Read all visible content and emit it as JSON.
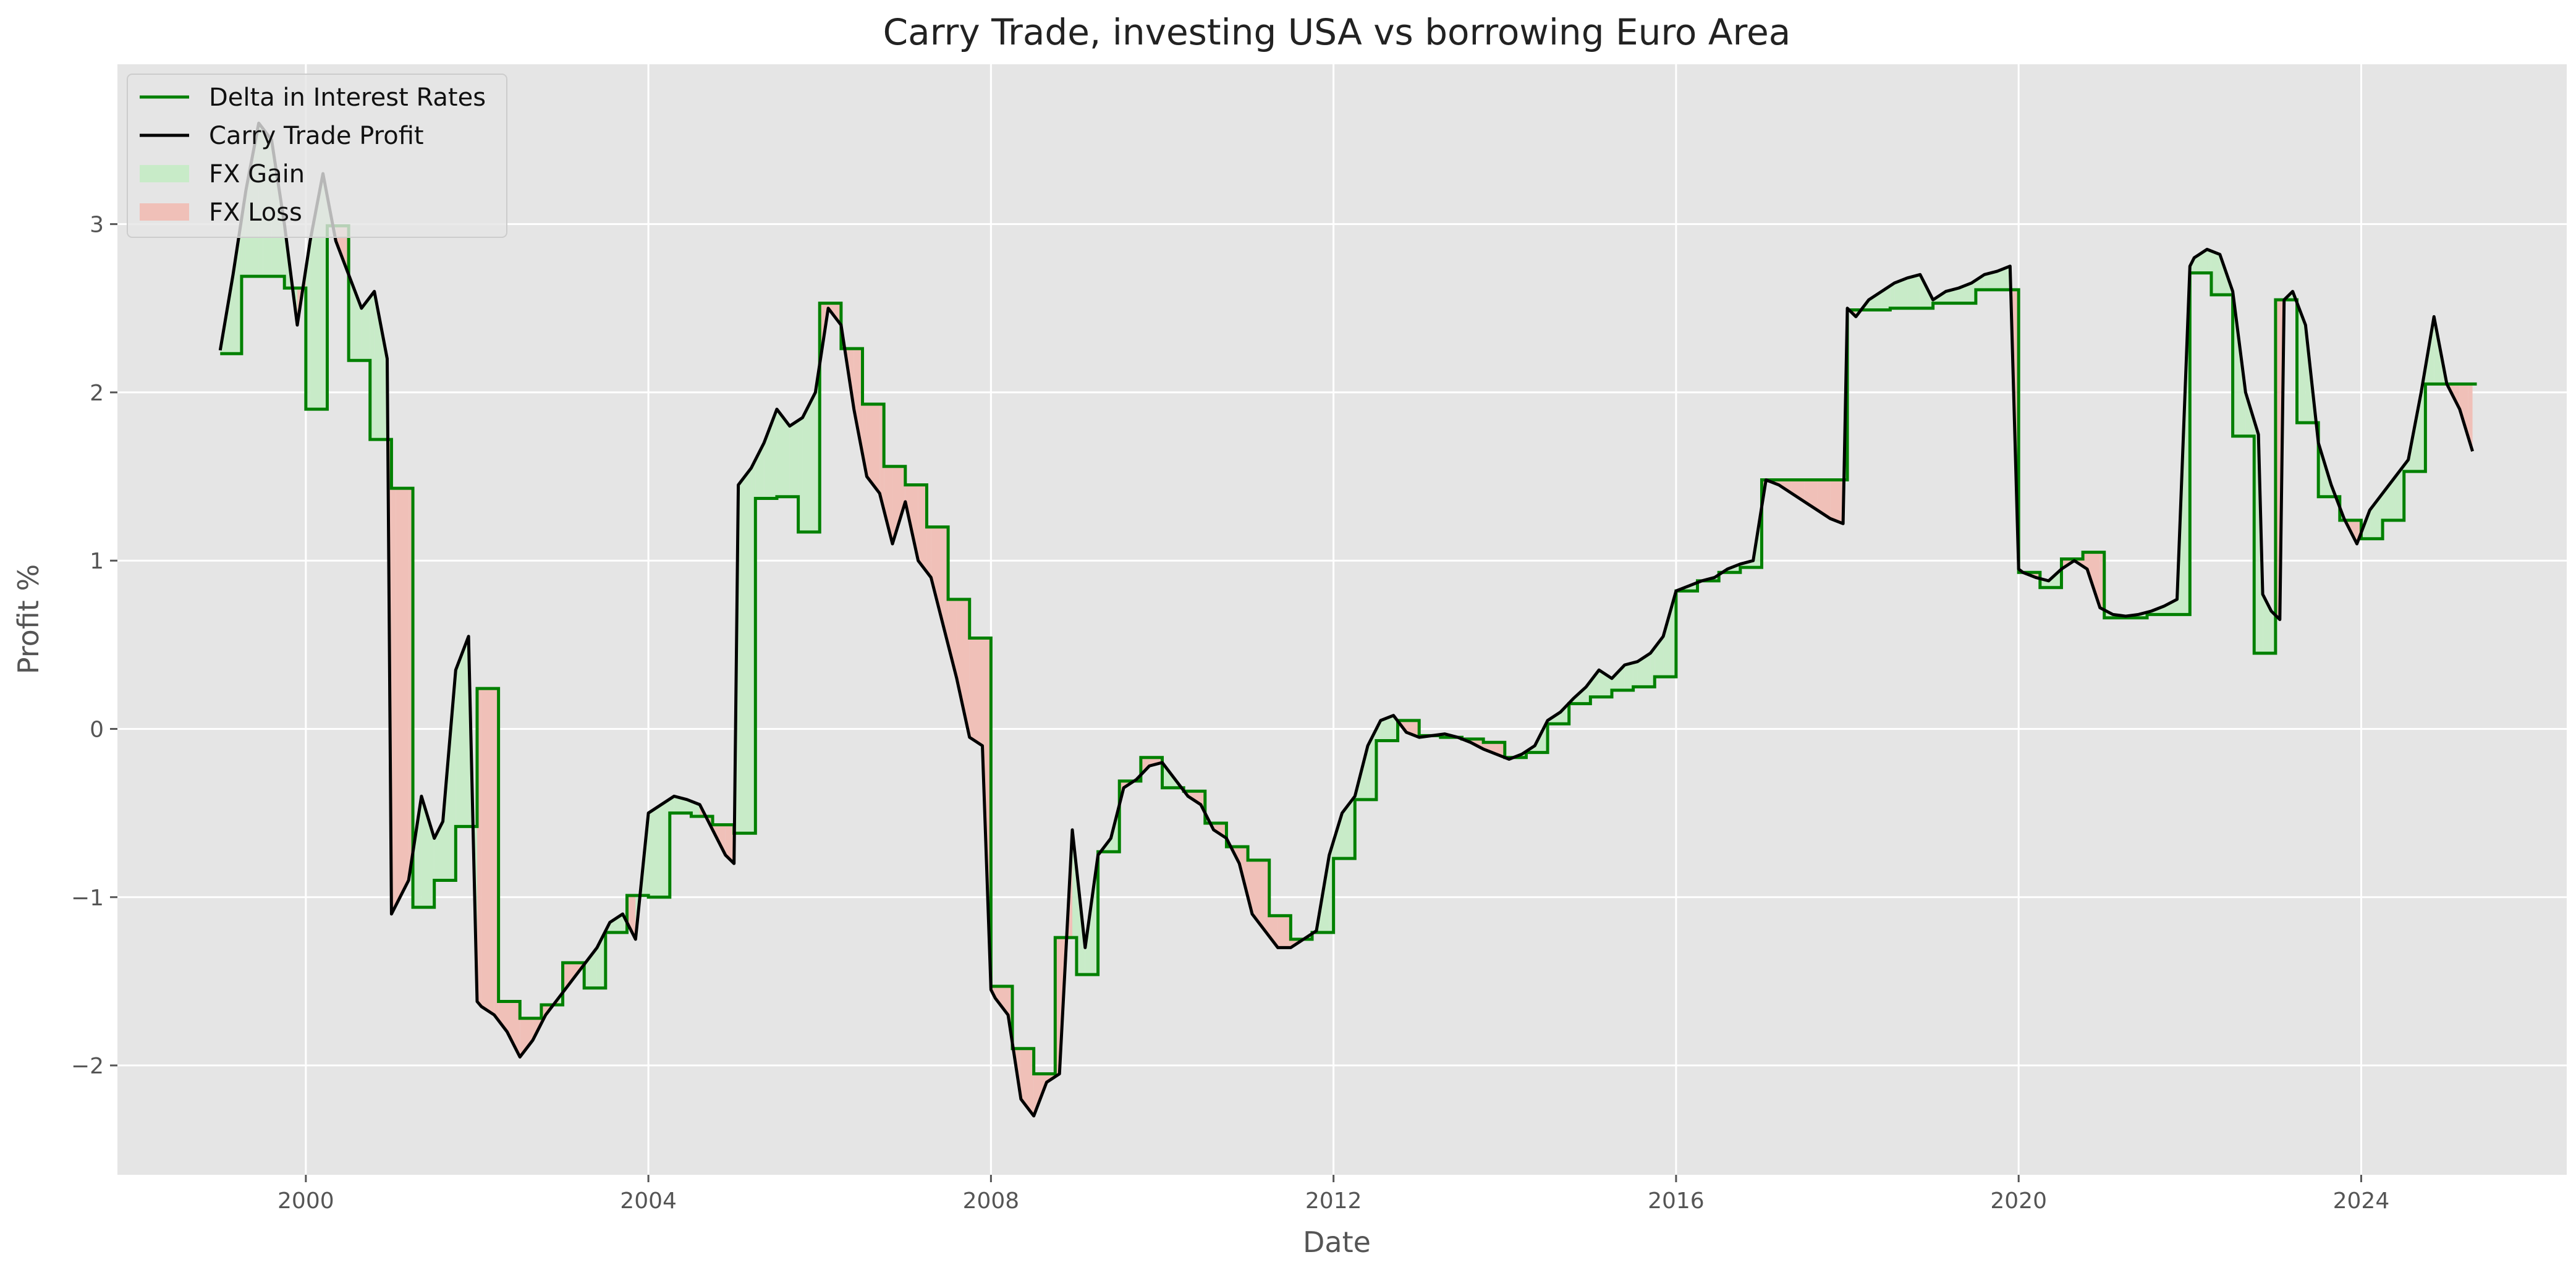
{
  "chart_data": {
    "type": "line",
    "title": "Carry Trade, investing USA vs borrowing Euro Area",
    "xlabel": "Date",
    "ylabel": "Profit %",
    "xlim": [
      1997.8,
      2026.4
    ],
    "ylim": [
      -2.65,
      3.95
    ],
    "x_ticks": [
      {
        "value": 2000,
        "label": "2000"
      },
      {
        "value": 2004,
        "label": "2004"
      },
      {
        "value": 2008,
        "label": "2008"
      },
      {
        "value": 2012,
        "label": "2012"
      },
      {
        "value": 2016,
        "label": "2016"
      },
      {
        "value": 2020,
        "label": "2020"
      },
      {
        "value": 2024,
        "label": "2024"
      }
    ],
    "y_ticks": [
      {
        "value": -2,
        "label": "−2"
      },
      {
        "value": -1,
        "label": "−1"
      },
      {
        "value": 0,
        "label": "0"
      },
      {
        "value": 1,
        "label": "1"
      },
      {
        "value": 2,
        "label": "2"
      },
      {
        "value": 3,
        "label": "3"
      }
    ],
    "grid": true,
    "legend_position": "top-left",
    "legend": [
      {
        "label": "Delta in Interest Rates",
        "kind": "line",
        "color": "#008000"
      },
      {
        "label": "Carry Trade Profit",
        "kind": "line",
        "color": "#000000"
      },
      {
        "label": "FX Gain",
        "kind": "patch",
        "color": "#c8ebc8"
      },
      {
        "label": "FX Loss",
        "kind": "patch",
        "color": "#f0c0b8"
      }
    ],
    "series": [
      {
        "name": "Delta in Interest Rates",
        "color": "#008000",
        "style": "step",
        "x": [
          1999.0,
          1999.25,
          1999.5,
          1999.75,
          2000.0,
          2000.25,
          2000.5,
          2000.75,
          2001.0,
          2001.25,
          2001.5,
          2001.75,
          2002.0,
          2002.25,
          2002.5,
          2002.75,
          2003.0,
          2003.25,
          2003.5,
          2003.75,
          2004.0,
          2004.25,
          2004.5,
          2004.75,
          2005.0,
          2005.25,
          2005.5,
          2005.75,
          2006.0,
          2006.25,
          2006.5,
          2006.75,
          2007.0,
          2007.25,
          2007.5,
          2007.75,
          2008.0,
          2008.25,
          2008.5,
          2008.75,
          2009.0,
          2009.25,
          2009.5,
          2009.75,
          2010.0,
          2010.25,
          2010.5,
          2010.75,
          2011.0,
          2011.25,
          2011.5,
          2011.75,
          2012.0,
          2012.25,
          2012.5,
          2012.75,
          2013.0,
          2013.25,
          2013.5,
          2013.75,
          2014.0,
          2014.25,
          2014.5,
          2014.75,
          2015.0,
          2015.25,
          2015.5,
          2015.75,
          2016.0,
          2016.25,
          2016.5,
          2016.75,
          2017.0,
          2017.5,
          2018.0,
          2018.5,
          2019.0,
          2019.5,
          2020.0,
          2020.25,
          2020.5,
          2020.75,
          2021.0,
          2021.5,
          2022.0,
          2022.25,
          2022.5,
          2022.75,
          2023.0,
          2023.25,
          2023.5,
          2023.75,
          2024.0,
          2024.25,
          2024.5,
          2024.75,
          2025.0,
          2025.25
        ],
        "y": [
          2.23,
          2.69,
          2.69,
          2.62,
          1.9,
          2.99,
          2.19,
          1.72,
          1.43,
          -1.06,
          -0.9,
          -0.58,
          0.24,
          -1.62,
          -1.72,
          -1.64,
          -1.39,
          -1.54,
          -1.21,
          -0.99,
          -1.0,
          -0.5,
          -0.52,
          -0.57,
          -0.62,
          1.37,
          1.38,
          1.17,
          2.53,
          2.26,
          1.93,
          1.56,
          1.45,
          1.2,
          0.77,
          0.54,
          -1.53,
          -1.9,
          -2.05,
          -1.24,
          -1.46,
          -0.73,
          -0.31,
          -0.17,
          -0.35,
          -0.37,
          -0.56,
          -0.7,
          -0.78,
          -1.11,
          -1.25,
          -1.21,
          -0.77,
          -0.42,
          -0.07,
          0.05,
          -0.04,
          -0.05,
          -0.06,
          -0.08,
          -0.17,
          -0.14,
          0.03,
          0.15,
          0.19,
          0.23,
          0.25,
          0.31,
          0.82,
          0.88,
          0.93,
          0.96,
          1.48,
          1.48,
          2.49,
          2.5,
          2.53,
          2.61,
          0.93,
          0.84,
          1.01,
          1.05,
          0.66,
          0.68,
          2.71,
          2.58,
          1.74,
          0.45,
          2.55,
          1.82,
          1.38,
          1.24,
          1.13,
          1.24,
          1.53,
          2.05,
          2.05,
          2.05
        ],
        "x_end": 2025.35
      },
      {
        "name": "Carry Trade Profit",
        "color": "#000000",
        "style": "line",
        "x": [
          1999.0,
          1999.15,
          1999.3,
          1999.45,
          1999.6,
          1999.75,
          1999.9,
          2000.05,
          2000.2,
          2000.35,
          2000.5,
          2000.65,
          2000.8,
          2000.95,
          2001.0,
          2001.05,
          2001.2,
          2001.35,
          2001.5,
          2001.6,
          2001.75,
          2001.9,
          2002.0,
          2002.05,
          2002.2,
          2002.35,
          2002.5,
          2002.65,
          2002.8,
          2002.95,
          2003.1,
          2003.25,
          2003.4,
          2003.55,
          2003.7,
          2003.85,
          2004.0,
          2004.15,
          2004.3,
          2004.45,
          2004.6,
          2004.75,
          2004.9,
          2005.0,
          2005.05,
          2005.2,
          2005.35,
          2005.5,
          2005.65,
          2005.8,
          2005.95,
          2006.1,
          2006.25,
          2006.4,
          2006.55,
          2006.7,
          2006.85,
          2007.0,
          2007.15,
          2007.3,
          2007.45,
          2007.6,
          2007.75,
          2007.9,
          2008.0,
          2008.05,
          2008.2,
          2008.35,
          2008.5,
          2008.65,
          2008.8,
          2008.95,
          2009.1,
          2009.25,
          2009.4,
          2009.55,
          2009.7,
          2009.85,
          2010.0,
          2010.15,
          2010.3,
          2010.45,
          2010.6,
          2010.75,
          2010.9,
          2011.05,
          2011.2,
          2011.35,
          2011.5,
          2011.65,
          2011.8,
          2011.95,
          2012.1,
          2012.25,
          2012.4,
          2012.55,
          2012.7,
          2012.85,
          2013.0,
          2013.15,
          2013.3,
          2013.45,
          2013.6,
          2013.75,
          2013.9,
          2014.05,
          2014.2,
          2014.35,
          2014.5,
          2014.65,
          2014.8,
          2014.95,
          2015.1,
          2015.25,
          2015.4,
          2015.55,
          2015.7,
          2015.85,
          2016.0,
          2016.15,
          2016.3,
          2016.45,
          2016.6,
          2016.75,
          2016.9,
          2017.05,
          2017.2,
          2017.35,
          2017.5,
          2017.65,
          2017.8,
          2017.95,
          2018.0,
          2018.1,
          2018.25,
          2018.4,
          2018.55,
          2018.7,
          2018.85,
          2019.0,
          2019.15,
          2019.3,
          2019.45,
          2019.6,
          2019.75,
          2019.9,
          2020.0,
          2020.05,
          2020.2,
          2020.35,
          2020.5,
          2020.65,
          2020.8,
          2020.95,
          2021.1,
          2021.25,
          2021.4,
          2021.55,
          2021.7,
          2021.85,
          2022.0,
          2022.05,
          2022.2,
          2022.35,
          2022.5,
          2022.65,
          2022.8,
          2022.85,
          2022.95,
          2023.05,
          2023.1,
          2023.2,
          2023.35,
          2023.5,
          2023.65,
          2023.8,
          2023.95,
          2024.1,
          2024.25,
          2024.4,
          2024.55,
          2024.7,
          2024.85,
          2025.0,
          2025.15,
          2025.3
        ],
        "y": [
          2.25,
          2.7,
          3.2,
          3.6,
          3.5,
          3.0,
          2.4,
          2.9,
          3.3,
          2.9,
          2.7,
          2.5,
          2.6,
          2.2,
          -1.1,
          -1.05,
          -0.9,
          -0.4,
          -0.65,
          -0.55,
          0.35,
          0.55,
          -1.62,
          -1.65,
          -1.7,
          -1.8,
          -1.95,
          -1.85,
          -1.7,
          -1.6,
          -1.5,
          -1.4,
          -1.3,
          -1.15,
          -1.1,
          -1.25,
          -0.5,
          -0.45,
          -0.4,
          -0.42,
          -0.45,
          -0.6,
          -0.75,
          -0.8,
          1.45,
          1.55,
          1.7,
          1.9,
          1.8,
          1.85,
          2.0,
          2.5,
          2.4,
          1.9,
          1.5,
          1.4,
          1.1,
          1.35,
          1.0,
          0.9,
          0.6,
          0.3,
          -0.05,
          -0.1,
          -1.55,
          -1.6,
          -1.7,
          -2.2,
          -2.3,
          -2.1,
          -2.05,
          -0.6,
          -1.3,
          -0.75,
          -0.65,
          -0.35,
          -0.3,
          -0.22,
          -0.2,
          -0.3,
          -0.4,
          -0.45,
          -0.6,
          -0.65,
          -0.8,
          -1.1,
          -1.2,
          -1.3,
          -1.3,
          -1.25,
          -1.2,
          -0.75,
          -0.5,
          -0.4,
          -0.1,
          0.05,
          0.08,
          -0.02,
          -0.05,
          -0.04,
          -0.03,
          -0.05,
          -0.08,
          -0.12,
          -0.15,
          -0.18,
          -0.15,
          -0.1,
          0.05,
          0.1,
          0.18,
          0.25,
          0.35,
          0.3,
          0.38,
          0.4,
          0.45,
          0.55,
          0.82,
          0.85,
          0.88,
          0.9,
          0.95,
          0.98,
          1.0,
          1.48,
          1.45,
          1.4,
          1.35,
          1.3,
          1.25,
          1.22,
          2.5,
          2.45,
          2.55,
          2.6,
          2.65,
          2.68,
          2.7,
          2.55,
          2.6,
          2.62,
          2.65,
          2.7,
          2.72,
          2.75,
          0.95,
          0.93,
          0.9,
          0.88,
          0.95,
          1.0,
          0.95,
          0.72,
          0.68,
          0.67,
          0.68,
          0.7,
          0.73,
          0.77,
          2.75,
          2.8,
          2.85,
          2.82,
          2.6,
          2.0,
          1.75,
          0.8,
          0.7,
          0.65,
          2.55,
          2.6,
          2.4,
          1.7,
          1.45,
          1.25,
          1.1,
          1.3,
          1.4,
          1.5,
          1.6,
          2.0,
          2.45,
          2.05,
          1.9,
          1.65
        ]
      }
    ]
  }
}
